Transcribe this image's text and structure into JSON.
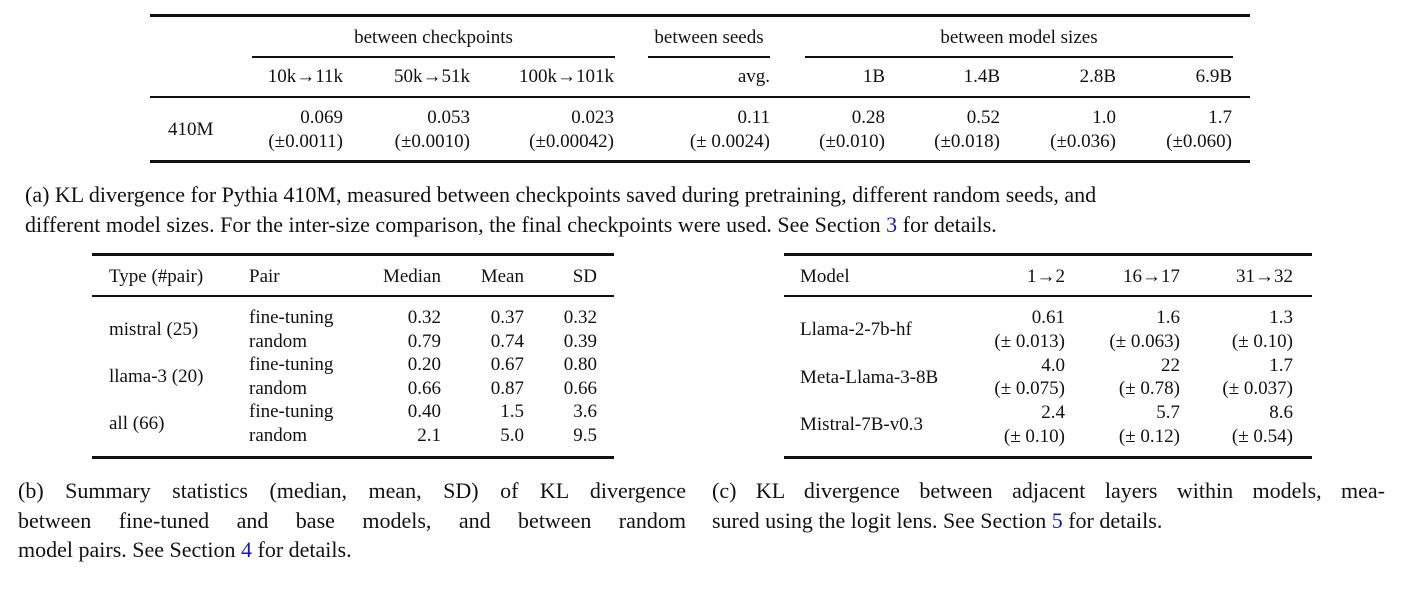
{
  "table_a": {
    "group_headers": [
      "between checkpoints",
      "between seeds",
      "between model sizes"
    ],
    "columns": [
      "10k→11k",
      "50k→51k",
      "100k→101k",
      "avg.",
      "1B",
      "1.4B",
      "2.8B",
      "6.9B"
    ],
    "row_label": "410M",
    "values": [
      "0.069",
      "0.053",
      "0.023",
      "0.11",
      "0.28",
      "0.52",
      "1.0",
      "1.7"
    ],
    "errors": [
      "(±0.0011)",
      "(±0.0010)",
      "(±0.00042)",
      "(± 0.0024)",
      "(±0.010)",
      "(±0.018)",
      "(±0.036)",
      "(±0.060)"
    ],
    "caption": {
      "line1": "(a) KL divergence for Pythia 410M, measured between checkpoints saved during pretraining, different random seeds, and",
      "line2_pre": "different model sizes. For the inter-size comparison, the final checkpoints were used. See Section ",
      "ref": "3",
      "line2_post": " for details."
    }
  },
  "table_b": {
    "headers": [
      "Type (#pair)",
      "Pair",
      "Median",
      "Mean",
      "SD"
    ],
    "groups": [
      {
        "type": "mistral (25)",
        "rows": [
          [
            "fine-tuning",
            "0.32",
            "0.37",
            "0.32"
          ],
          [
            "random",
            "0.79",
            "0.74",
            "0.39"
          ]
        ]
      },
      {
        "type": "llama-3 (20)",
        "rows": [
          [
            "fine-tuning",
            "0.20",
            "0.67",
            "0.80"
          ],
          [
            "random",
            "0.66",
            "0.87",
            "0.66"
          ]
        ]
      },
      {
        "type": "all (66)",
        "rows": [
          [
            "fine-tuning",
            "0.40",
            "1.5",
            "3.6"
          ],
          [
            "random",
            "2.1",
            "5.0",
            "9.5"
          ]
        ]
      }
    ],
    "caption": {
      "line1": "(b) Summary statistics (median, mean, SD) of KL divergence",
      "line2": "between fine-tuned and base models, and between random",
      "line3_pre": "model pairs. See Section ",
      "ref": "4",
      "line3_post": " for details."
    }
  },
  "table_c": {
    "headers": [
      "Model",
      "1→2",
      "16→17",
      "31→32"
    ],
    "rows": [
      {
        "model": "Llama-2-7b-hf",
        "values": [
          "0.61",
          "1.6",
          "1.3"
        ],
        "errors": [
          "(± 0.013)",
          "(± 0.063)",
          "(± 0.10)"
        ]
      },
      {
        "model": "Meta-Llama-3-8B",
        "values": [
          "4.0",
          "22",
          "1.7"
        ],
        "errors": [
          "(± 0.075)",
          "(± 0.78)",
          "(± 0.037)"
        ]
      },
      {
        "model": "Mistral-7B-v0.3",
        "values": [
          "2.4",
          "5.7",
          "8.6"
        ],
        "errors": [
          "(± 0.10)",
          "(± 0.12)",
          "(± 0.54)"
        ]
      }
    ],
    "caption": {
      "line1": "(c) KL divergence between adjacent layers within models, mea-",
      "line2_pre": "sured using the logit lens. See Section ",
      "ref": "5",
      "line2_post": " for details."
    }
  },
  "colors": {
    "reference_link": "#1a1aa6",
    "text": "#111111"
  }
}
